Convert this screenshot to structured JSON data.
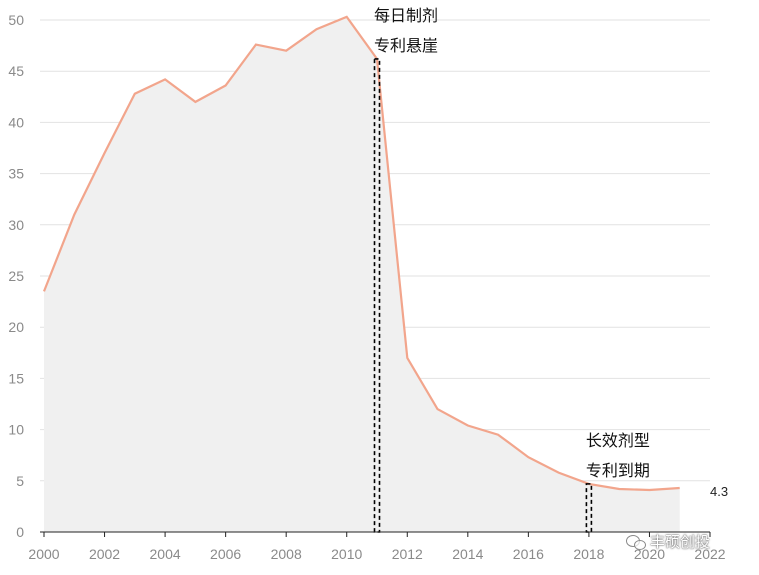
{
  "chart_data": {
    "type": "area",
    "x": [
      2000,
      2001,
      2002,
      2003,
      2004,
      2005,
      2006,
      2007,
      2008,
      2009,
      2010,
      2011,
      2012,
      2013,
      2014,
      2015,
      2016,
      2017,
      2018,
      2019,
      2020,
      2021
    ],
    "values": [
      23.5,
      31,
      37,
      42.8,
      44.2,
      42,
      43.6,
      47.6,
      47,
      49.1,
      50.3,
      46.2,
      17,
      12,
      10.4,
      9.5,
      7.3,
      5.8,
      4.7,
      4.2,
      4.1,
      4.3
    ],
    "xlim": [
      2000,
      2022
    ],
    "ylim": [
      0,
      50
    ],
    "x_ticks": [
      "2000",
      "2002",
      "2004",
      "2006",
      "2008",
      "2010",
      "2012",
      "2014",
      "2016",
      "2018",
      "2020",
      "2022"
    ],
    "y_ticks": [
      "0",
      "5",
      "10",
      "15",
      "20",
      "25",
      "30",
      "35",
      "40",
      "45",
      "50"
    ],
    "grid": true,
    "line_color": "#f2a58c",
    "fill_color": "#f0f0f0",
    "annotations": [
      {
        "x": 2011,
        "y": 46.2,
        "lines": [
          "每日制剂",
          "专利悬崖"
        ]
      },
      {
        "x": 2018,
        "y": 4.7,
        "lines": [
          "长效剂型",
          "专利到期"
        ]
      }
    ],
    "end_label": "4.3"
  },
  "watermark": {
    "text": "丰硕创投",
    "icon": "wechat-icon"
  }
}
